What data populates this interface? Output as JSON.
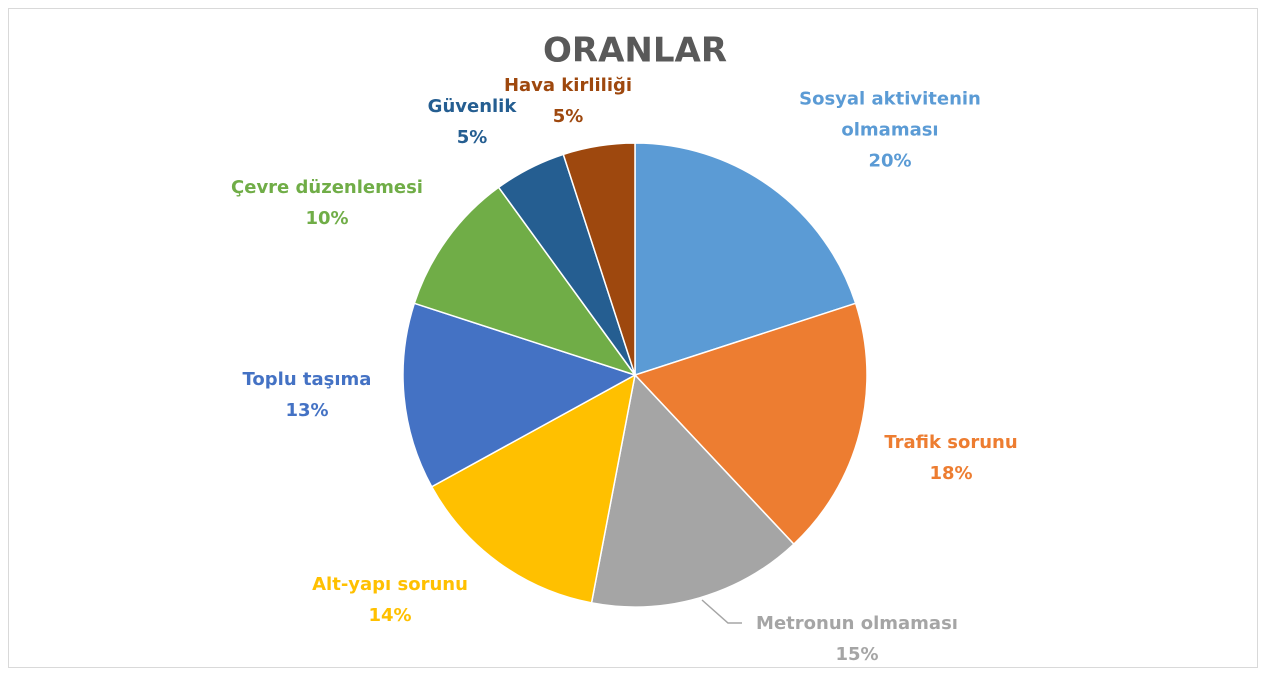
{
  "chart_data": {
    "type": "pie",
    "title": "ORANLAR",
    "categories": [
      "Sosyal aktivitenin olmaması",
      "Trafik sorunu",
      "Metronun olmaması",
      "Alt-yapı sorunu",
      "Toplu taşıma",
      "Çevre düzenlemesi",
      "Güvenlik",
      "Hava kirliliği"
    ],
    "values": [
      20,
      18,
      15,
      14,
      13,
      10,
      5,
      5
    ],
    "value_labels": [
      "20%",
      "18%",
      "15%",
      "14%",
      "13%",
      "10%",
      "5%",
      "5%"
    ],
    "colors": [
      "#5b9bd5",
      "#ed7d31",
      "#a5a5a5",
      "#ffc000",
      "#4472c4",
      "#70ad47",
      "#255e91",
      "#9e480e"
    ]
  }
}
